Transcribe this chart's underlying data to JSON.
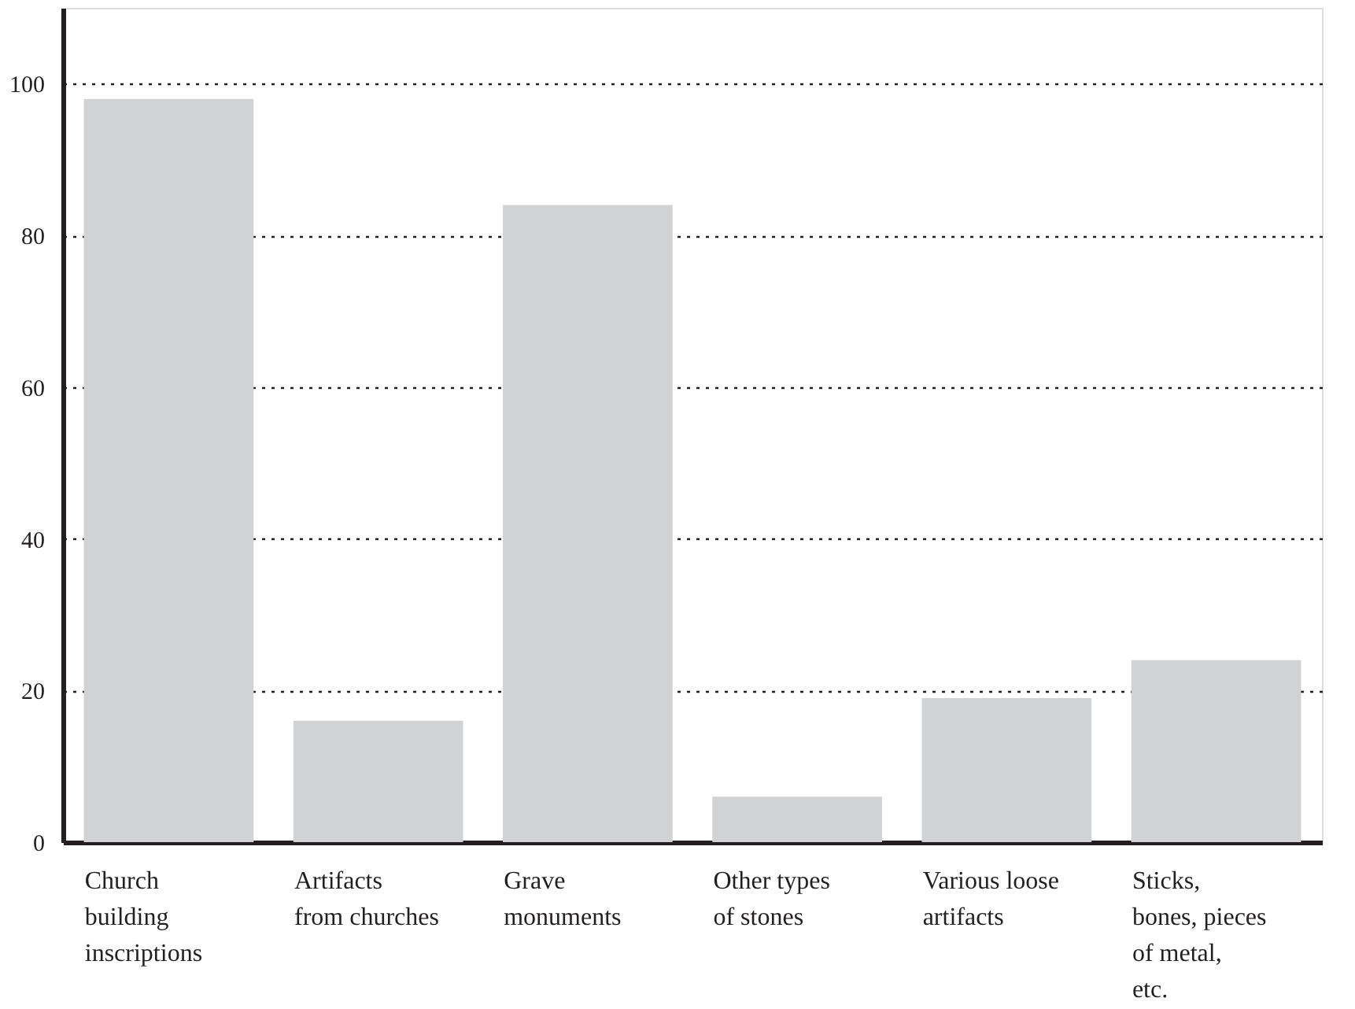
{
  "chart_data": {
    "type": "bar",
    "categories": [
      "Church building inscriptions",
      "Artifacts from churches",
      "Grave monuments",
      "Other types of stones",
      "Various loose artifacts",
      "Sticks, bones, pieces of metal, etc."
    ],
    "values": [
      98,
      16,
      84,
      6,
      19,
      24
    ],
    "color": "#d1d2d4",
    "ylim": [
      0,
      110
    ],
    "yticks": [
      0,
      20,
      40,
      60,
      80,
      100
    ],
    "grid": "y"
  }
}
